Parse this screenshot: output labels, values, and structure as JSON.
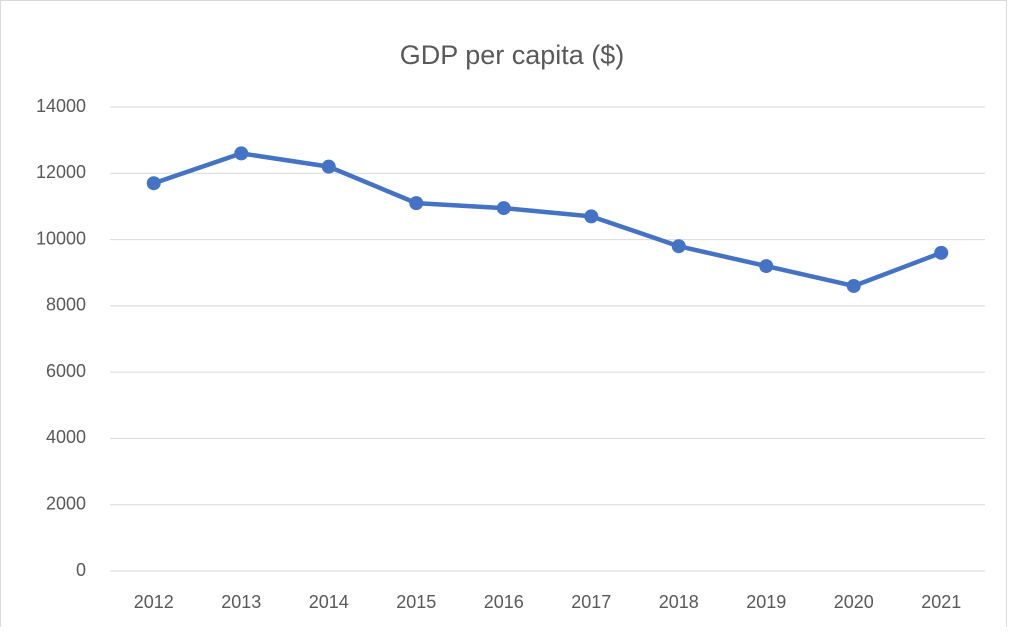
{
  "chart_data": {
    "type": "line",
    "title": "GDP per capita ($)",
    "categories": [
      "2012",
      "2013",
      "2014",
      "2015",
      "2016",
      "2017",
      "2018",
      "2019",
      "2020",
      "2021"
    ],
    "values": [
      11700,
      12600,
      12200,
      11100,
      10950,
      10700,
      9800,
      9200,
      8600,
      9600
    ],
    "color": "#4472c4",
    "ylim": [
      0,
      14000
    ],
    "yticks": [
      0,
      2000,
      4000,
      6000,
      8000,
      10000,
      12000,
      14000
    ],
    "grid": true
  }
}
